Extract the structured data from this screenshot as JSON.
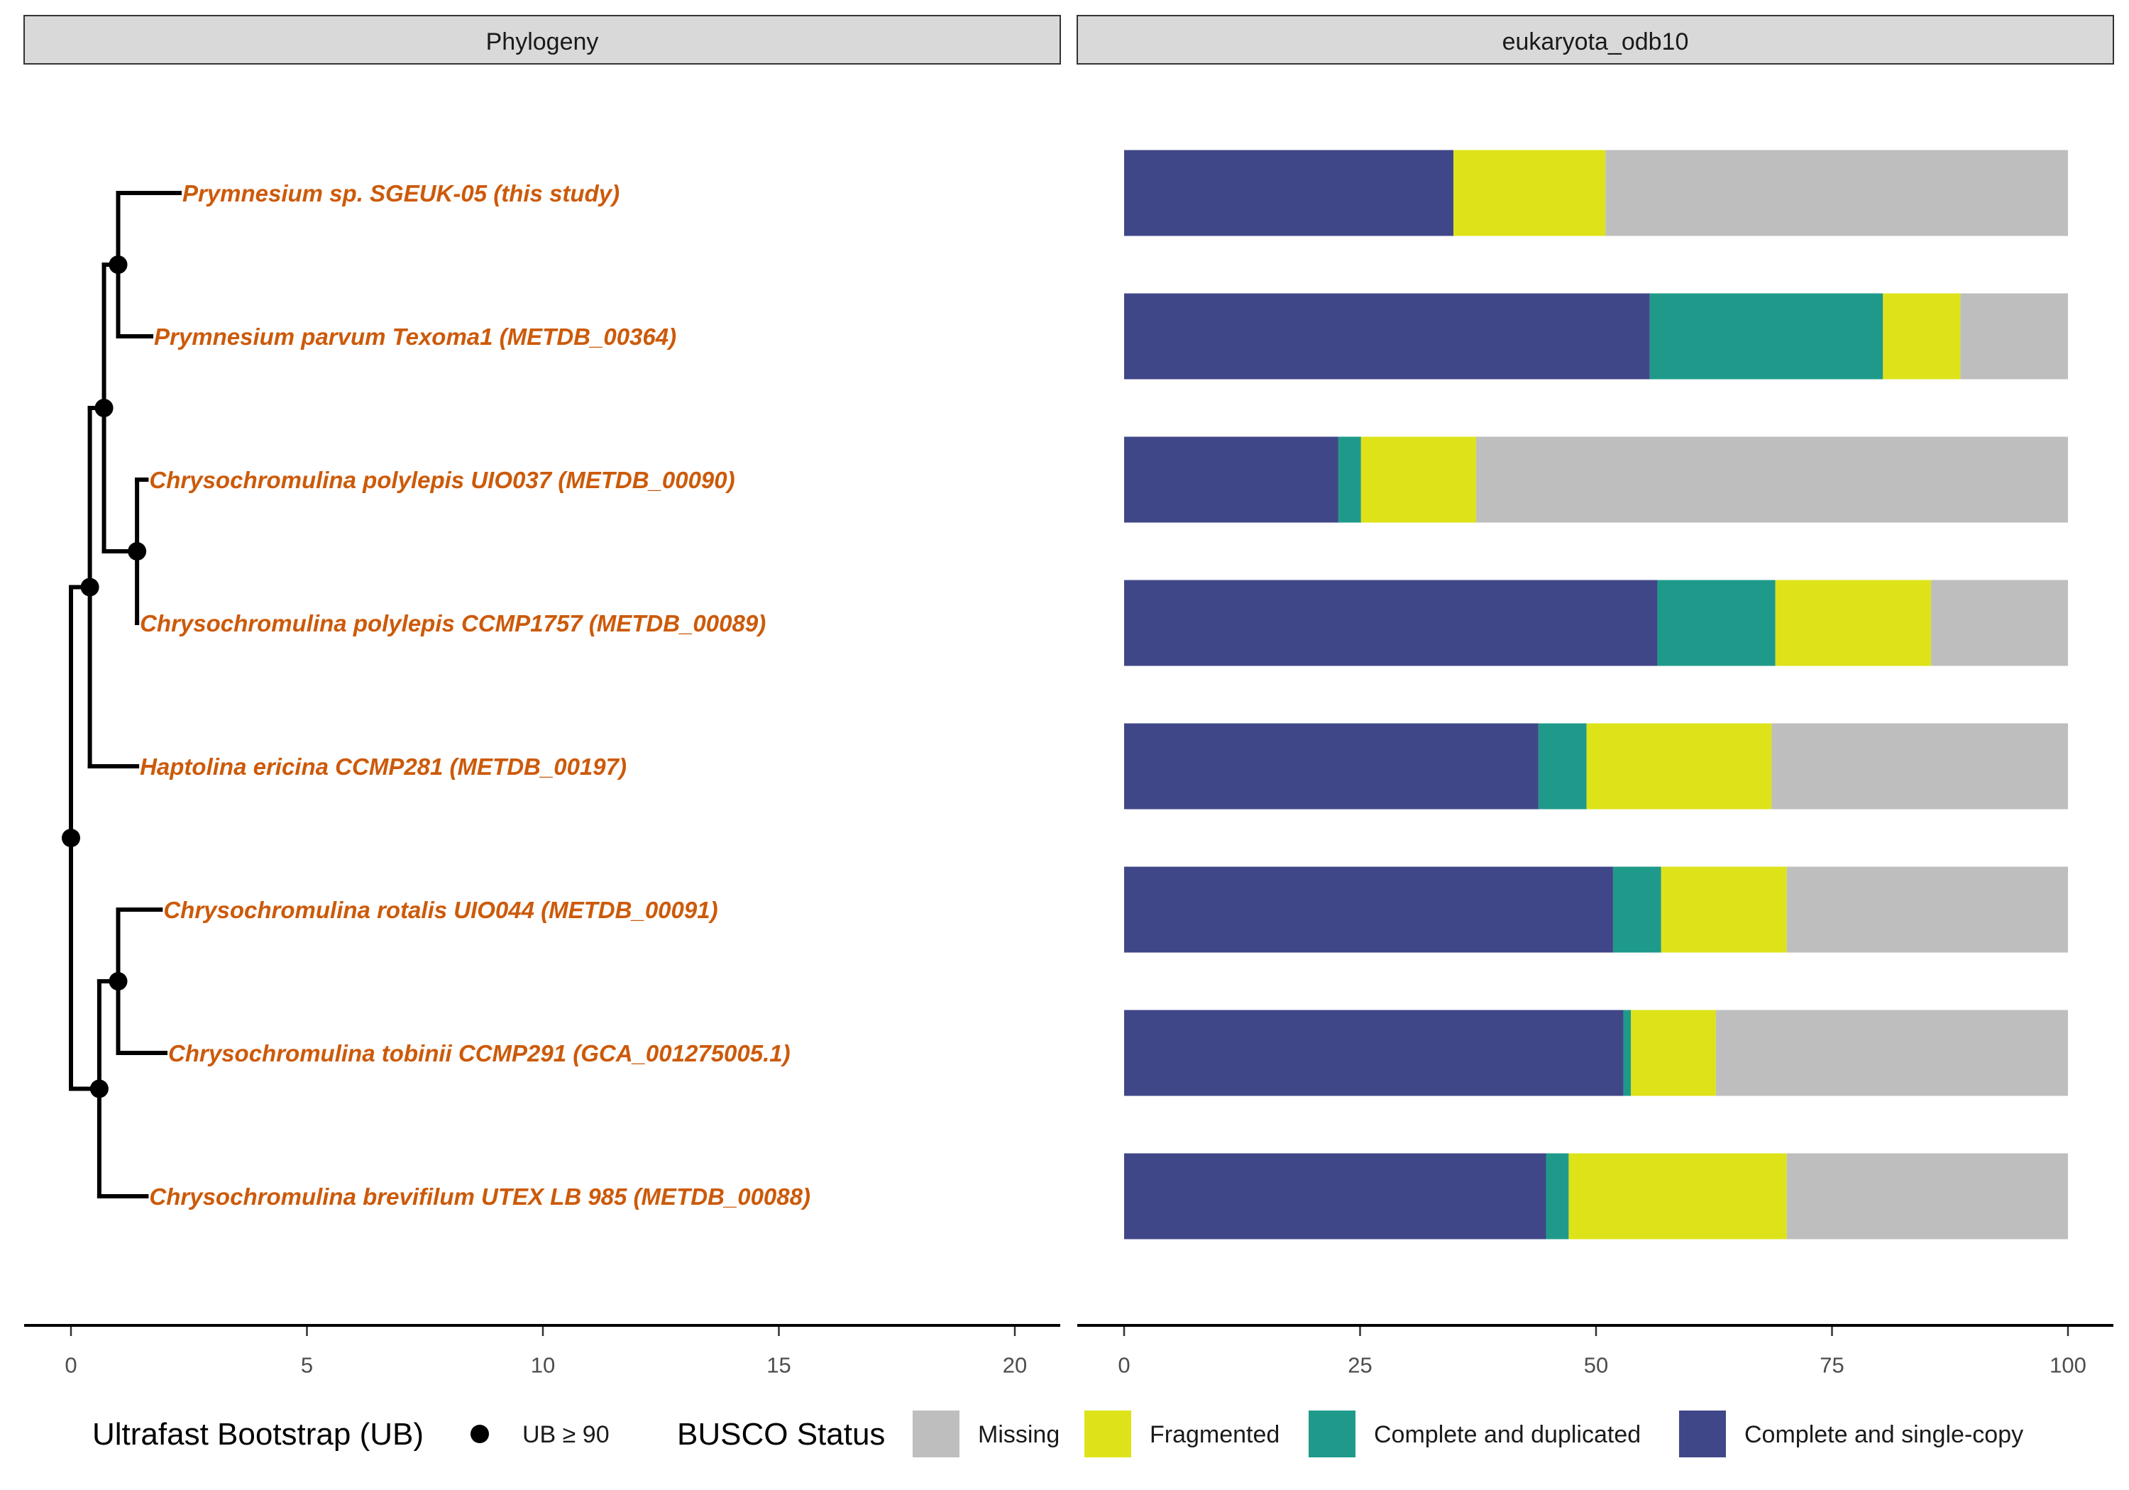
{
  "panels": {
    "left_title": "Phylogeny",
    "right_title": "eukaryota_odb10"
  },
  "colors": {
    "tip_label": "#cc5a0a",
    "missing": "#bebebe",
    "fragmented": "#dde318",
    "complete_duplicated": "#1f9a8a",
    "complete_single": "#404788"
  },
  "legend": {
    "bootstrap_title": "Ultrafast Bootstrap (UB)",
    "bootstrap_item": "UB ≥ 90",
    "busco_title": "BUSCO Status",
    "busco_items": [
      "Missing",
      "Fragmented",
      "Complete and duplicated",
      "Complete and single-copy"
    ]
  },
  "chart_data": [
    {
      "type": "tree",
      "title": "Phylogeny",
      "xlim": [
        -1,
        21
      ],
      "xticks": [
        0,
        5,
        10,
        15,
        20
      ],
      "tips": [
        "Prymnesium sp. SGEUK-05 (this study)",
        "Prymnesium parvum Texoma1 (METDB_00364)",
        "Chrysochromulina polylepis UIO037 (METDB_00090)",
        "Chrysochromulina polylepis CCMP1757 (METDB_00089)",
        "Haptolina ericina CCMP281 (METDB_00197)",
        "Chrysochromulina rotalis UIO044 (METDB_00091)",
        "Chrysochromulina tobinii CCMP291 (GCA_001275005.1)",
        "Chrysochromulina brevifilum UTEX LB 985 (METDB_00088)"
      ],
      "tip_depth": [
        2.3,
        1.7,
        1.6,
        1.4,
        1.4,
        1.9,
        2.0,
        1.6
      ],
      "nodes": [
        {
          "id": "n0",
          "depth": 0.0,
          "parent": null,
          "support_ub90": true
        },
        {
          "id": "n1",
          "depth": 0.4,
          "parent": "n0",
          "support_ub90": true
        },
        {
          "id": "n2",
          "depth": 0.7,
          "parent": "n1",
          "support_ub90": true
        },
        {
          "id": "n3",
          "depth": 1.0,
          "parent": "n2",
          "support_ub90": true
        },
        {
          "id": "n4",
          "depth": 1.4,
          "parent": "n2",
          "support_ub90": true
        },
        {
          "id": "n5",
          "depth": 0.6,
          "parent": "n0",
          "support_ub90": true
        },
        {
          "id": "n6",
          "depth": 1.0,
          "parent": "n5",
          "support_ub90": true
        }
      ],
      "tip_parents": [
        "n3",
        "n3",
        "n4",
        "n4",
        "n1",
        "n6",
        "n6",
        "n5"
      ]
    },
    {
      "type": "bar",
      "title": "eukaryota_odb10",
      "orientation": "horizontal",
      "stacked": true,
      "xlim": [
        0,
        100
      ],
      "xticks": [
        0,
        25,
        50,
        75,
        100
      ],
      "categories": [
        "Prymnesium sp. SGEUK-05 (this study)",
        "Prymnesium parvum Texoma1 (METDB_00364)",
        "Chrysochromulina polylepis UIO037 (METDB_00090)",
        "Chrysochromulina polylepis CCMP1757 (METDB_00089)",
        "Haptolina ericina CCMP281 (METDB_00197)",
        "Chrysochromulina rotalis UIO044 (METDB_00091)",
        "Chrysochromulina tobinii CCMP291 (GCA_001275005.1)",
        "Chrysochromulina brevifilum UTEX LB 985 (METDB_00088)"
      ],
      "series": [
        {
          "name": "Complete and single-copy",
          "values": [
            34.9,
            55.7,
            22.7,
            56.5,
            43.9,
            51.8,
            52.9,
            44.7
          ]
        },
        {
          "name": "Complete and duplicated",
          "values": [
            0.0,
            24.7,
            2.4,
            12.5,
            5.1,
            5.1,
            0.8,
            2.4
          ]
        },
        {
          "name": "Fragmented",
          "values": [
            16.1,
            8.2,
            12.2,
            16.5,
            19.6,
            13.3,
            9.0,
            23.1
          ]
        },
        {
          "name": "Missing",
          "values": [
            49.0,
            11.4,
            62.7,
            14.5,
            31.4,
            29.8,
            37.3,
            29.8
          ]
        }
      ]
    }
  ]
}
